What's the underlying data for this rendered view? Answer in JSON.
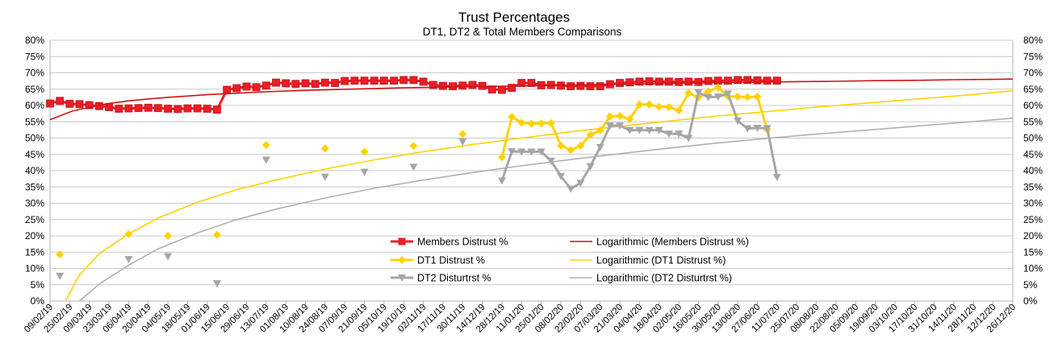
{
  "chart_data": {
    "type": "line",
    "title": "Trust Percentages",
    "subtitle": "DT1, DT2 & Total Members Comparisons",
    "xlabel": "",
    "ylabel": "",
    "ylim": [
      0,
      80
    ],
    "y_ticks": [
      "0%",
      "5%",
      "10%",
      "15%",
      "20%",
      "25%",
      "30%",
      "35%",
      "40%",
      "45%",
      "50%",
      "55%",
      "60%",
      "65%",
      "70%",
      "75%",
      "80%"
    ],
    "x_range": [
      "2019-02-09",
      "2020-12-26"
    ],
    "x_ticks": [
      "09/02/19",
      "25/02/19",
      "09/03/19",
      "23/03/19",
      "06/04/19",
      "20/04/19",
      "04/05/19",
      "18/05/19",
      "01/06/19",
      "15/06/19",
      "29/06/19",
      "13/07/19",
      "01/08/19",
      "10/08/19",
      "24/08/19",
      "07/09/19",
      "21/09/19",
      "05/10/19",
      "19/10/19",
      "02/11/19",
      "17/11/19",
      "30/11/19",
      "14/12/19",
      "28/12/19",
      "11/01/20",
      "25/01/20",
      "08/02/20",
      "22/02/20",
      "07/03/20",
      "21/03/20",
      "04/04/20",
      "18/04/20",
      "02/05/20",
      "16/05/20",
      "30/05/20",
      "13/06/20",
      "27/06/20",
      "11/07/20",
      "25/07/20",
      "08/08/20",
      "22/08/20",
      "05/09/20",
      "19/09/20",
      "03/10/20",
      "17/10/20",
      "31/10/20",
      "14/11/20",
      "28/11/20",
      "12/12/20",
      "26/12/20"
    ],
    "grid": true,
    "legend_position": "bottom-center",
    "series": [
      {
        "name": "Members Distrust %",
        "color": "#ee1c25",
        "marker": "square",
        "values": [
          [
            "2019-02-09",
            60.6
          ],
          [
            "2019-02-16",
            61.4
          ],
          [
            "2019-02-23",
            60.5
          ],
          [
            "2019-03-02",
            60.4
          ],
          [
            "2019-03-09",
            60.1
          ],
          [
            "2019-03-16",
            59.8
          ],
          [
            "2019-03-23",
            59.5
          ],
          [
            "2019-03-30",
            59.0
          ],
          [
            "2019-04-06",
            59.1
          ],
          [
            "2019-04-13",
            59.2
          ],
          [
            "2019-04-20",
            59.3
          ],
          [
            "2019-04-27",
            59.2
          ],
          [
            "2019-05-04",
            59.0
          ],
          [
            "2019-05-11",
            58.9
          ],
          [
            "2019-05-18",
            59.1
          ],
          [
            "2019-05-25",
            59.1
          ],
          [
            "2019-06-01",
            59.0
          ],
          [
            "2019-06-08",
            58.7
          ],
          [
            "2019-06-15",
            64.8
          ],
          [
            "2019-06-22",
            65.3
          ],
          [
            "2019-06-29",
            65.8
          ],
          [
            "2019-07-06",
            65.6
          ],
          [
            "2019-07-13",
            66.1
          ],
          [
            "2019-07-20",
            67.0
          ],
          [
            "2019-07-27",
            66.8
          ],
          [
            "2019-08-03",
            66.6
          ],
          [
            "2019-08-10",
            66.8
          ],
          [
            "2019-08-17",
            66.6
          ],
          [
            "2019-08-24",
            67.0
          ],
          [
            "2019-08-31",
            66.9
          ],
          [
            "2019-09-07",
            67.5
          ],
          [
            "2019-09-14",
            67.6
          ],
          [
            "2019-09-21",
            67.6
          ],
          [
            "2019-09-28",
            67.6
          ],
          [
            "2019-10-05",
            67.6
          ],
          [
            "2019-10-12",
            67.6
          ],
          [
            "2019-10-19",
            67.8
          ],
          [
            "2019-10-26",
            67.8
          ],
          [
            "2019-11-02",
            67.3
          ],
          [
            "2019-11-09",
            66.3
          ],
          [
            "2019-11-16",
            66.0
          ],
          [
            "2019-11-23",
            65.9
          ],
          [
            "2019-11-30",
            66.1
          ],
          [
            "2019-12-07",
            66.3
          ],
          [
            "2019-12-14",
            66.0
          ],
          [
            "2019-12-21",
            64.9
          ],
          [
            "2019-12-28",
            64.8
          ],
          [
            "2020-01-04",
            65.4
          ],
          [
            "2020-01-11",
            66.9
          ],
          [
            "2020-01-18",
            66.9
          ],
          [
            "2020-01-25",
            66.2
          ],
          [
            "2020-02-01",
            66.3
          ],
          [
            "2020-02-08",
            66.1
          ],
          [
            "2020-02-15",
            65.9
          ],
          [
            "2020-02-22",
            66.0
          ],
          [
            "2020-02-29",
            65.9
          ],
          [
            "2020-03-07",
            65.9
          ],
          [
            "2020-03-14",
            66.5
          ],
          [
            "2020-03-21",
            66.9
          ],
          [
            "2020-03-28",
            67.1
          ],
          [
            "2020-04-04",
            67.3
          ],
          [
            "2020-04-11",
            67.4
          ],
          [
            "2020-04-18",
            67.3
          ],
          [
            "2020-04-25",
            67.3
          ],
          [
            "2020-05-02",
            67.2
          ],
          [
            "2020-05-09",
            67.3
          ],
          [
            "2020-05-16",
            67.2
          ],
          [
            "2020-05-23",
            67.5
          ],
          [
            "2020-05-30",
            67.6
          ],
          [
            "2020-06-06",
            67.6
          ],
          [
            "2020-06-13",
            67.8
          ],
          [
            "2020-06-20",
            67.8
          ],
          [
            "2020-06-27",
            67.7
          ],
          [
            "2020-07-04",
            67.6
          ],
          [
            "2020-07-11",
            67.6
          ]
        ]
      },
      {
        "name": "Logarithmic (Members Distrust %)",
        "color": "#cc1417",
        "marker": "none",
        "values": [
          [
            "2019-02-09",
            55.6
          ],
          [
            "2019-02-25",
            58.3
          ],
          [
            "2019-03-09",
            59.4
          ],
          [
            "2019-03-23",
            60.6
          ],
          [
            "2019-04-06",
            61.4
          ],
          [
            "2019-04-20",
            62.0
          ],
          [
            "2019-05-04",
            62.5
          ],
          [
            "2019-05-18",
            62.9
          ],
          [
            "2019-06-01",
            63.3
          ],
          [
            "2019-06-15",
            63.6
          ],
          [
            "2019-06-29",
            63.9
          ],
          [
            "2019-07-13",
            64.2
          ],
          [
            "2019-08-01",
            64.5
          ],
          [
            "2019-08-24",
            64.8
          ],
          [
            "2019-09-21",
            65.1
          ],
          [
            "2019-10-19",
            65.4
          ],
          [
            "2019-11-17",
            65.6
          ],
          [
            "2019-12-14",
            65.8
          ],
          [
            "2020-01-11",
            66.0
          ],
          [
            "2020-02-08",
            66.2
          ],
          [
            "2020-03-07",
            66.4
          ],
          [
            "2020-04-04",
            66.6
          ],
          [
            "2020-05-02",
            66.8
          ],
          [
            "2020-05-30",
            67.0
          ],
          [
            "2020-06-27",
            67.1
          ],
          [
            "2020-07-25",
            67.3
          ],
          [
            "2020-08-22",
            67.4
          ],
          [
            "2020-09-19",
            67.6
          ],
          [
            "2020-10-17",
            67.7
          ],
          [
            "2020-11-14",
            67.9
          ],
          [
            "2020-12-12",
            68.0
          ],
          [
            "2020-12-26",
            68.1
          ]
        ]
      },
      {
        "name": "DT1 Distrust %",
        "color": "#ffd200",
        "marker": "diamond",
        "values": [
          [
            "2019-02-16",
            14.3
          ],
          [
            "2019-04-06",
            20.6
          ],
          [
            "2019-05-04",
            20.0
          ],
          [
            "2019-06-08",
            20.3
          ],
          [
            "2019-07-13",
            47.9
          ],
          [
            "2019-08-24",
            46.8
          ],
          [
            "2019-09-21",
            45.8
          ],
          [
            "2019-10-26",
            47.6
          ],
          [
            "2019-11-30",
            51.2
          ],
          [
            "2019-12-28",
            44.1
          ],
          [
            "2020-01-04",
            56.5
          ],
          [
            "2020-01-11",
            54.7
          ],
          [
            "2020-01-18",
            54.4
          ],
          [
            "2020-01-25",
            54.5
          ],
          [
            "2020-02-01",
            54.6
          ],
          [
            "2020-02-08",
            47.7
          ],
          [
            "2020-02-15",
            46.3
          ],
          [
            "2020-02-22",
            47.6
          ],
          [
            "2020-02-29",
            51.0
          ],
          [
            "2020-03-07",
            52.3
          ],
          [
            "2020-03-14",
            56.6
          ],
          [
            "2020-03-21",
            56.8
          ],
          [
            "2020-03-28",
            55.8
          ],
          [
            "2020-04-04",
            60.3
          ],
          [
            "2020-04-11",
            60.3
          ],
          [
            "2020-04-18",
            59.6
          ],
          [
            "2020-04-25",
            59.5
          ],
          [
            "2020-05-02",
            58.5
          ],
          [
            "2020-05-09",
            63.8
          ],
          [
            "2020-05-16",
            62.5
          ],
          [
            "2020-05-23",
            64.3
          ],
          [
            "2020-05-30",
            65.5
          ],
          [
            "2020-06-06",
            62.8
          ],
          [
            "2020-06-13",
            62.7
          ],
          [
            "2020-06-20",
            62.6
          ],
          [
            "2020-06-27",
            62.7
          ],
          [
            "2020-07-04",
            52.6
          ]
        ]
      },
      {
        "name": "Logarithmic (DT1 Distrust %)",
        "color": "#ffd200",
        "marker": "none",
        "values": [
          [
            "2019-02-20",
            0.0
          ],
          [
            "2019-03-02",
            8.0
          ],
          [
            "2019-03-16",
            14.5
          ],
          [
            "2019-04-06",
            20.6
          ],
          [
            "2019-04-27",
            25.5
          ],
          [
            "2019-05-25",
            30.3
          ],
          [
            "2019-06-22",
            34.2
          ],
          [
            "2019-07-20",
            37.1
          ],
          [
            "2019-08-24",
            40.5
          ],
          [
            "2019-09-28",
            43.3
          ],
          [
            "2019-11-02",
            45.8
          ],
          [
            "2019-12-07",
            48.0
          ],
          [
            "2020-01-11",
            50.0
          ],
          [
            "2020-02-15",
            51.9
          ],
          [
            "2020-03-21",
            53.6
          ],
          [
            "2020-04-25",
            55.2
          ],
          [
            "2020-05-30",
            56.8
          ],
          [
            "2020-07-04",
            58.1
          ],
          [
            "2020-08-08",
            59.5
          ],
          [
            "2020-09-12",
            60.7
          ],
          [
            "2020-10-17",
            61.9
          ],
          [
            "2020-11-21",
            63.1
          ],
          [
            "2020-12-26",
            64.5
          ]
        ]
      },
      {
        "name": "DT2 Disturtrst %",
        "color": "#a6a6a6",
        "marker": "triangle-down",
        "values": [
          [
            "2019-02-16",
            7.7
          ],
          [
            "2019-04-06",
            12.8
          ],
          [
            "2019-05-04",
            13.7
          ],
          [
            "2019-06-08",
            5.4
          ],
          [
            "2019-07-13",
            43.3
          ],
          [
            "2019-08-24",
            38.1
          ],
          [
            "2019-09-21",
            39.6
          ],
          [
            "2019-10-26",
            41.1
          ],
          [
            "2019-11-30",
            48.9
          ],
          [
            "2019-12-28",
            36.9
          ],
          [
            "2020-01-04",
            45.9
          ],
          [
            "2020-01-11",
            45.8
          ],
          [
            "2020-01-18",
            45.8
          ],
          [
            "2020-01-25",
            45.8
          ],
          [
            "2020-02-01",
            43.0
          ],
          [
            "2020-02-08",
            38.3
          ],
          [
            "2020-02-15",
            34.4
          ],
          [
            "2020-02-22",
            36.2
          ],
          [
            "2020-02-29",
            41.3
          ],
          [
            "2020-03-07",
            47.2
          ],
          [
            "2020-03-14",
            53.8
          ],
          [
            "2020-03-21",
            53.8
          ],
          [
            "2020-03-28",
            52.4
          ],
          [
            "2020-04-04",
            52.4
          ],
          [
            "2020-04-11",
            52.4
          ],
          [
            "2020-04-18",
            52.4
          ],
          [
            "2020-04-25",
            51.3
          ],
          [
            "2020-05-02",
            51.3
          ],
          [
            "2020-05-09",
            50.0
          ],
          [
            "2020-05-16",
            64.0
          ],
          [
            "2020-05-23",
            62.5
          ],
          [
            "2020-05-30",
            62.7
          ],
          [
            "2020-06-06",
            63.6
          ],
          [
            "2020-06-13",
            55.3
          ],
          [
            "2020-06-20",
            52.9
          ],
          [
            "2020-06-27",
            53.1
          ],
          [
            "2020-07-04",
            53.0
          ],
          [
            "2020-07-11",
            38.0
          ]
        ]
      },
      {
        "name": "Logarithmic (DT2 Disturtrst %)",
        "color": "#b0b0b0",
        "marker": "none",
        "values": [
          [
            "2019-03-02",
            0.0
          ],
          [
            "2019-03-16",
            5.2
          ],
          [
            "2019-04-06",
            11.0
          ],
          [
            "2019-04-27",
            16.0
          ],
          [
            "2019-05-25",
            20.9
          ],
          [
            "2019-06-22",
            25.0
          ],
          [
            "2019-07-20",
            28.2
          ],
          [
            "2019-08-24",
            31.6
          ],
          [
            "2019-09-28",
            34.6
          ],
          [
            "2019-11-02",
            37.1
          ],
          [
            "2019-12-07",
            39.4
          ],
          [
            "2020-01-11",
            41.5
          ],
          [
            "2020-02-15",
            43.4
          ],
          [
            "2020-03-21",
            45.2
          ],
          [
            "2020-04-25",
            46.9
          ],
          [
            "2020-05-30",
            48.5
          ],
          [
            "2020-07-04",
            49.9
          ],
          [
            "2020-08-08",
            51.2
          ],
          [
            "2020-09-12",
            52.4
          ],
          [
            "2020-10-17",
            53.6
          ],
          [
            "2020-11-21",
            54.8
          ],
          [
            "2020-12-26",
            56.1
          ]
        ]
      }
    ]
  }
}
